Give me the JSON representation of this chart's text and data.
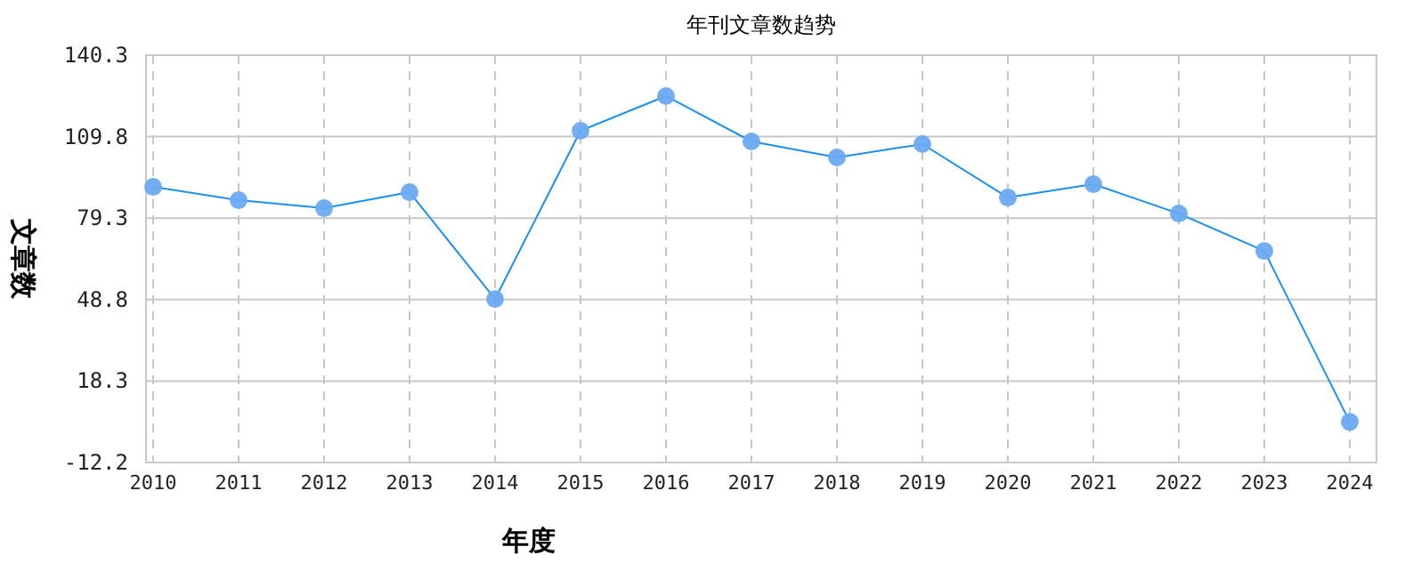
{
  "chart_data": {
    "type": "line",
    "title": "年刊文章数趋势",
    "xlabel": "年度",
    "ylabel": "文章数",
    "categories": [
      "2010",
      "2011",
      "2012",
      "2013",
      "2014",
      "2015",
      "2016",
      "2017",
      "2018",
      "2019",
      "2020",
      "2021",
      "2022",
      "2023",
      "2024"
    ],
    "series": [
      {
        "color": "#1a90f0",
        "values": [
          91,
          86,
          83,
          89,
          49,
          112,
          125,
          108,
          102,
          107,
          87,
          92,
          81,
          67,
          3
        ]
      }
    ],
    "ylim": [
      -12.2,
      140.3
    ],
    "yticks": [
      -12.2,
      18.3,
      48.8,
      79.3,
      109.8,
      140.3
    ],
    "grid": true,
    "marker": "circle",
    "line_style": "solid"
  }
}
